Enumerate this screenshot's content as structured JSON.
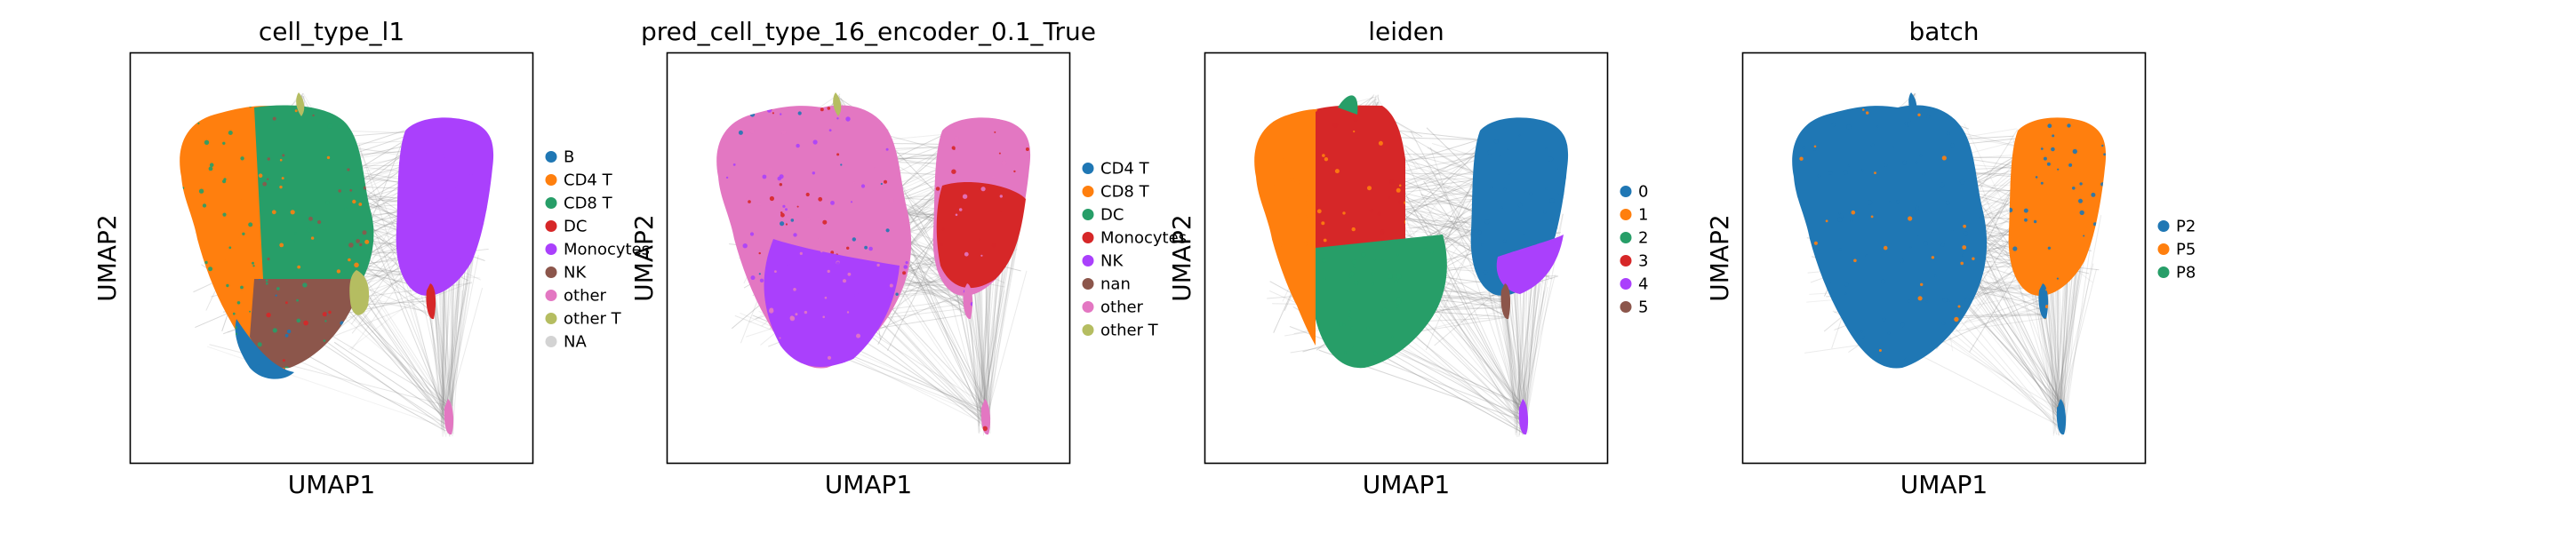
{
  "chart_data": [
    {
      "type": "scatter",
      "title": "cell_type_l1",
      "xlabel": "UMAP1",
      "ylabel": "UMAP2",
      "grid": false,
      "legend_position": "right",
      "legend": [
        {
          "label": "B",
          "color": "#1f77b4"
        },
        {
          "label": "CD4 T",
          "color": "#ff7f0e"
        },
        {
          "label": "CD8 T",
          "color": "#279e68"
        },
        {
          "label": "DC",
          "color": "#d62728"
        },
        {
          "label": "Monocytes",
          "color": "#aa40fc"
        },
        {
          "label": "NK",
          "color": "#8c564b"
        },
        {
          "label": "other",
          "color": "#e377c2"
        },
        {
          "label": "other T",
          "color": "#b5bd61"
        },
        {
          "label": "NA",
          "color": "#d3d3d3"
        }
      ]
    },
    {
      "type": "scatter",
      "title": "pred_cell_type_16_encoder_0.1_True",
      "xlabel": "UMAP1",
      "ylabel": "UMAP2",
      "grid": false,
      "legend_position": "right",
      "legend": [
        {
          "label": "CD4 T",
          "color": "#1f77b4"
        },
        {
          "label": "CD8 T",
          "color": "#ff7f0e"
        },
        {
          "label": "DC",
          "color": "#279e68"
        },
        {
          "label": "Monocytes",
          "color": "#d62728"
        },
        {
          "label": "NK",
          "color": "#aa40fc"
        },
        {
          "label": "nan",
          "color": "#8c564b"
        },
        {
          "label": "other",
          "color": "#e377c2"
        },
        {
          "label": "other T",
          "color": "#b5bd61"
        }
      ]
    },
    {
      "type": "scatter",
      "title": "leiden",
      "xlabel": "UMAP1",
      "ylabel": "UMAP2",
      "grid": false,
      "legend_position": "right",
      "legend": [
        {
          "label": "0",
          "color": "#1f77b4"
        },
        {
          "label": "1",
          "color": "#ff7f0e"
        },
        {
          "label": "2",
          "color": "#279e68"
        },
        {
          "label": "3",
          "color": "#d62728"
        },
        {
          "label": "4",
          "color": "#aa40fc"
        },
        {
          "label": "5",
          "color": "#8c564b"
        }
      ]
    },
    {
      "type": "scatter",
      "title": "batch",
      "xlabel": "UMAP1",
      "ylabel": "UMAP2",
      "grid": false,
      "legend_position": "right",
      "legend": [
        {
          "label": "P2",
          "color": "#1f77b4"
        },
        {
          "label": "P5",
          "color": "#ff7f0e"
        },
        {
          "label": "P8",
          "color": "#279e68"
        }
      ]
    }
  ]
}
